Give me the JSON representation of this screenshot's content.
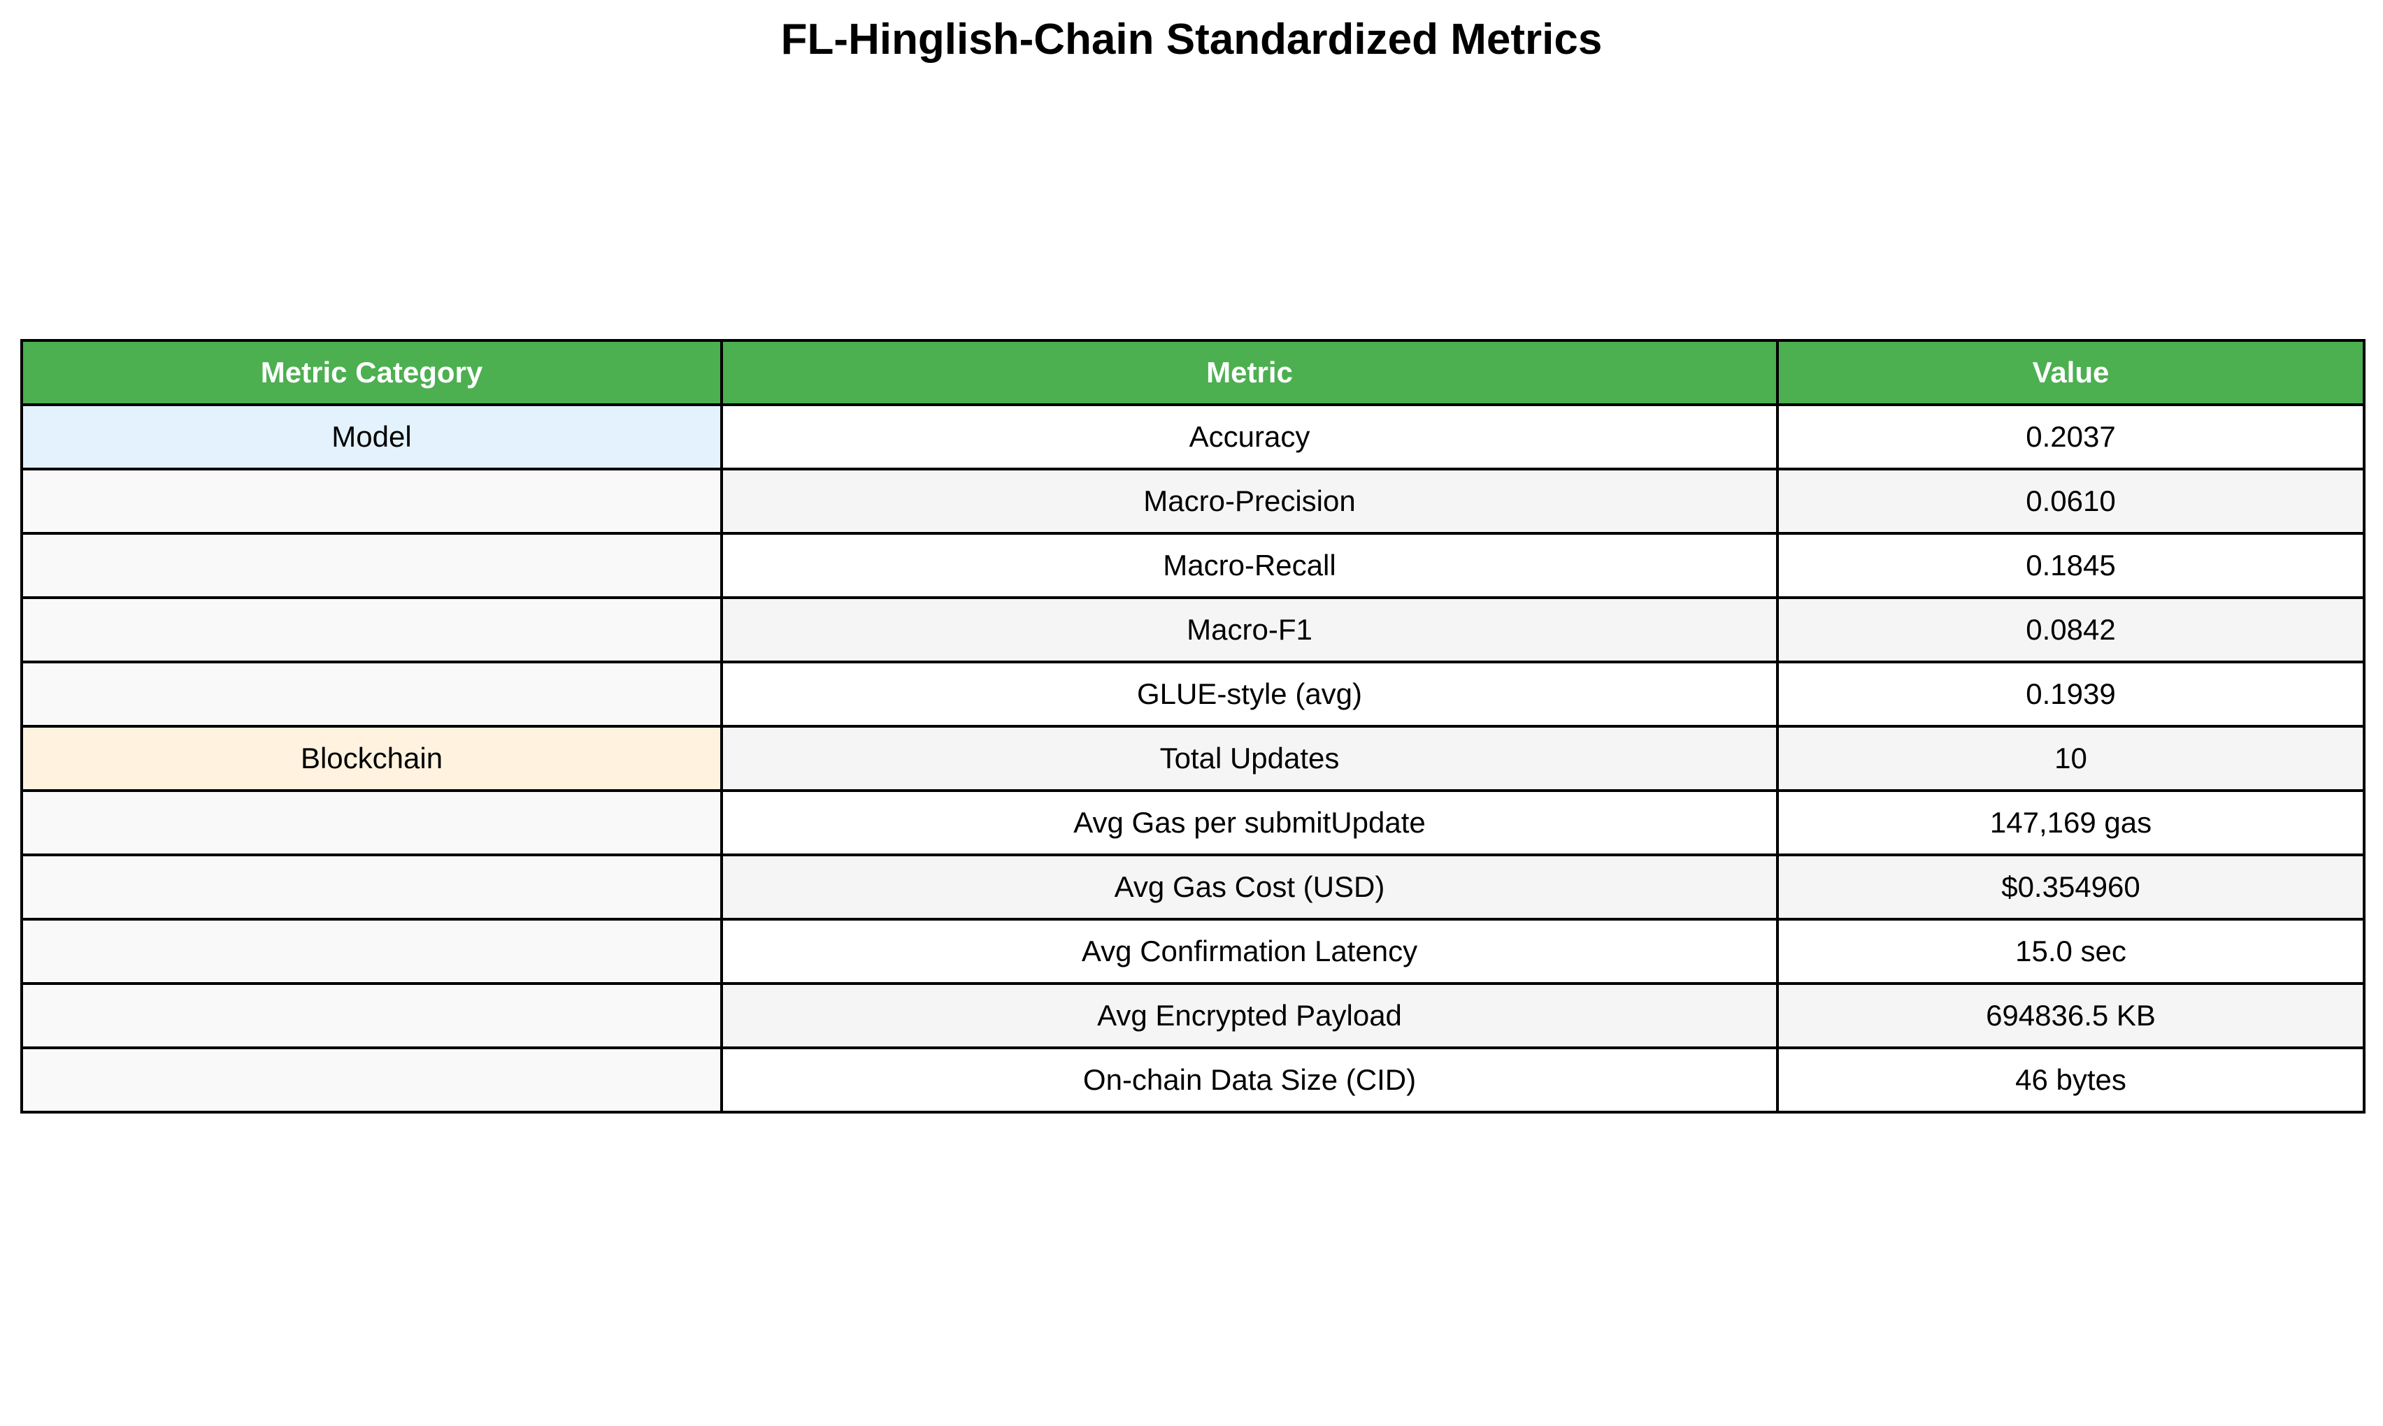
{
  "title": "FL-Hinglish-Chain Standardized Metrics",
  "colors": {
    "header_bg": "#4caf50",
    "header_text": "#ffffff",
    "model_category_bg": "#e3f2fd",
    "blockchain_category_bg": "#fff3e0",
    "row_alt_bg": "#f5f5f5",
    "row_bg": "#ffffff",
    "category_empty_bg": "#f9f9f9"
  },
  "chart_data": {
    "type": "table",
    "title": "FL-Hinglish-Chain Standardized Metrics",
    "columns": [
      "Metric Category",
      "Metric",
      "Value"
    ],
    "rows": [
      [
        "Model",
        "Accuracy",
        "0.2037"
      ],
      [
        "",
        "Macro-Precision",
        "0.0610"
      ],
      [
        "",
        "Macro-Recall",
        "0.1845"
      ],
      [
        "",
        "Macro-F1",
        "0.0842"
      ],
      [
        "",
        "GLUE-style (avg)",
        "0.1939"
      ],
      [
        "Blockchain",
        "Total Updates",
        "10"
      ],
      [
        "",
        "Avg Gas per submitUpdate",
        "147,169 gas"
      ],
      [
        "",
        "Avg Gas Cost (USD)",
        "$0.354960"
      ],
      [
        "",
        "Avg Confirmation Latency",
        "15.0 sec"
      ],
      [
        "",
        "Avg Encrypted Payload",
        "694836.5 KB"
      ],
      [
        "",
        "On-chain Data Size (CID)",
        "46 bytes"
      ]
    ]
  }
}
